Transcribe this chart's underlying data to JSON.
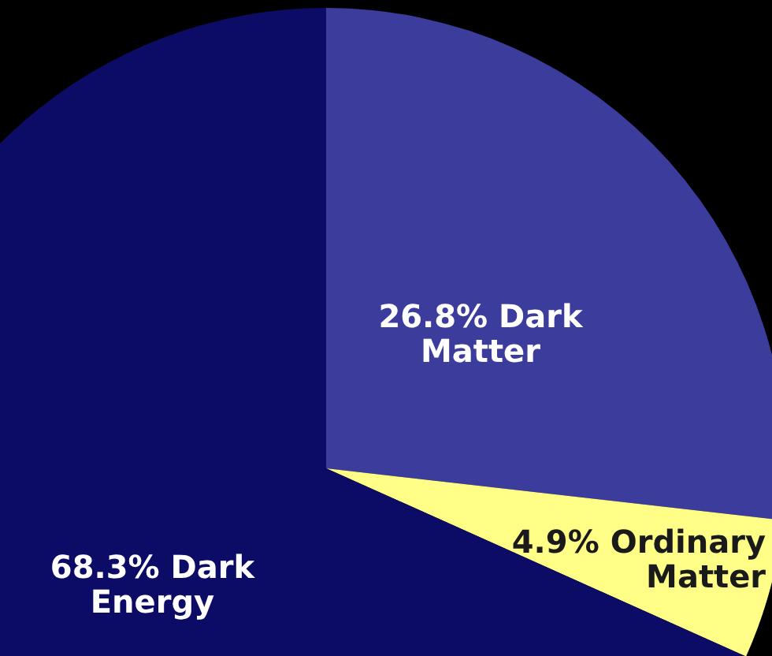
{
  "chart_data": {
    "type": "pie",
    "categories": [
      "Dark Matter",
      "Ordinary Matter",
      "Dark Energy"
    ],
    "values": [
      26.8,
      4.9,
      68.3
    ],
    "value_labels": [
      "26.8%",
      "4.9%",
      "68.3%"
    ],
    "colors": [
      "#3c3c9c",
      "#ffff88",
      "#0c0c66"
    ]
  }
}
